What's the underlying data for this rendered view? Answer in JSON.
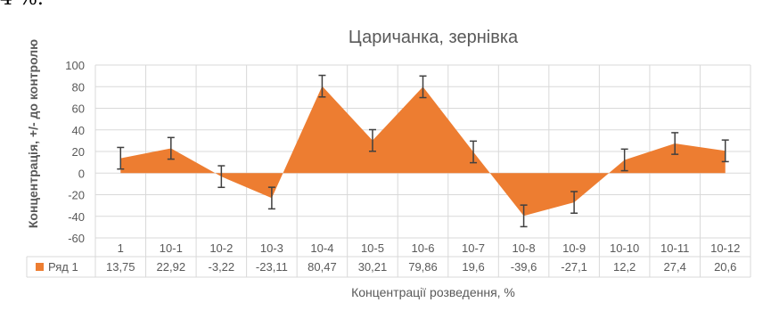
{
  "top_fragment": "4 %.",
  "chart_data": {
    "type": "area",
    "title": "Царичанка, зернівка",
    "xlabel": "Концентрації розведення, %",
    "ylabel": "Концентрація, +/- до контролю",
    "ylim": [
      -60,
      100
    ],
    "yticks": [
      -60,
      -40,
      -20,
      0,
      20,
      40,
      60,
      80,
      100
    ],
    "grid": true,
    "error_bars": true,
    "error_amount": 10,
    "categories": [
      "1",
      "10-1",
      "10-2",
      "10-3",
      "10-4",
      "10-5",
      "10-6",
      "10-7",
      "10-8",
      "10-9",
      "10-10",
      "10-11",
      "10-12"
    ],
    "series": [
      {
        "name": "Ряд 1",
        "color": "#ED7D31",
        "values": [
          13.75,
          22.92,
          -3.22,
          -23.11,
          80.47,
          30.21,
          79.86,
          19.6,
          -39.6,
          -27.1,
          12.2,
          27.4,
          20.6
        ],
        "labels": [
          "13,75",
          "22,92",
          "-3,22",
          "-23,11",
          "80,47",
          "30,21",
          "79,86",
          "19,6",
          "-39,6",
          "-27,1",
          "12,2",
          "27,4",
          "20,6"
        ]
      }
    ],
    "data_table": true
  }
}
